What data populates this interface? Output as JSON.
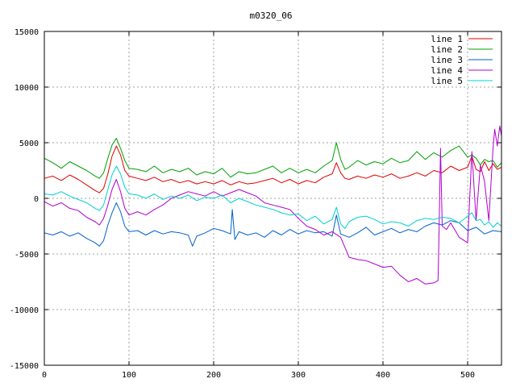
{
  "chart_data": {
    "type": "line",
    "title": "m0320_06",
    "xlabel": "",
    "ylabel": "",
    "xlim": [
      0,
      540
    ],
    "ylim": [
      -15000,
      15000
    ],
    "xticks": [
      0,
      100,
      200,
      300,
      400,
      500
    ],
    "yticks": [
      -15000,
      -10000,
      -5000,
      0,
      5000,
      10000,
      15000
    ],
    "grid": true,
    "legend_position": "top-right",
    "series": [
      {
        "name": "line 1",
        "color": "#e00000",
        "x": [
          0,
          10,
          20,
          30,
          40,
          50,
          60,
          65,
          70,
          75,
          80,
          85,
          90,
          95,
          100,
          110,
          120,
          130,
          140,
          150,
          160,
          170,
          180,
          190,
          200,
          210,
          220,
          230,
          240,
          250,
          260,
          270,
          280,
          290,
          300,
          310,
          320,
          330,
          340,
          345,
          350,
          355,
          360,
          370,
          380,
          390,
          400,
          410,
          420,
          430,
          440,
          450,
          460,
          470,
          480,
          490,
          500,
          505,
          510,
          515,
          520,
          525,
          530,
          535,
          540
        ],
        "y": [
          1800,
          2000,
          1600,
          2100,
          1700,
          1200,
          700,
          500,
          900,
          2200,
          3800,
          4700,
          3900,
          2500,
          2000,
          1800,
          1600,
          1900,
          1500,
          1700,
          1400,
          1600,
          1300,
          1500,
          1300,
          1600,
          1200,
          1500,
          1300,
          1400,
          1600,
          1800,
          1400,
          1700,
          1300,
          1600,
          1400,
          1900,
          2200,
          3200,
          2300,
          1800,
          1700,
          2000,
          1800,
          2100,
          1900,
          2200,
          1800,
          2000,
          2300,
          2000,
          2500,
          2300,
          2900,
          2500,
          2800,
          3800,
          2600,
          2400,
          3300,
          2500,
          3100,
          2600,
          2800
        ]
      },
      {
        "name": "line 2",
        "color": "#00a000",
        "x": [
          0,
          10,
          20,
          30,
          40,
          50,
          60,
          65,
          70,
          75,
          80,
          85,
          90,
          95,
          100,
          110,
          120,
          130,
          140,
          150,
          160,
          170,
          180,
          190,
          200,
          210,
          220,
          230,
          240,
          250,
          260,
          270,
          280,
          290,
          300,
          310,
          320,
          330,
          340,
          345,
          350,
          355,
          360,
          370,
          380,
          390,
          400,
          410,
          420,
          430,
          440,
          450,
          460,
          470,
          480,
          490,
          500,
          505,
          510,
          515,
          520,
          525,
          530,
          535,
          540
        ],
        "y": [
          3600,
          3200,
          2700,
          3300,
          2900,
          2500,
          2000,
          1800,
          2300,
          3600,
          4800,
          5400,
          4500,
          3400,
          2700,
          2600,
          2400,
          2900,
          2300,
          2600,
          2400,
          2700,
          2100,
          2400,
          2200,
          2700,
          1900,
          2400,
          2200,
          2300,
          2600,
          2900,
          2300,
          2700,
          2300,
          2600,
          2300,
          2900,
          3400,
          5000,
          3500,
          2600,
          2800,
          3400,
          3000,
          3300,
          3100,
          3600,
          3200,
          3400,
          4200,
          3500,
          4100,
          3700,
          4300,
          4700,
          3700,
          3900,
          3600,
          3000,
          3500,
          3300,
          3400,
          2800,
          3200
        ]
      },
      {
        "name": "line 3",
        "color": "#0060d0",
        "x": [
          0,
          10,
          20,
          30,
          40,
          50,
          60,
          65,
          70,
          75,
          80,
          85,
          90,
          95,
          100,
          110,
          120,
          130,
          140,
          150,
          160,
          170,
          175,
          180,
          190,
          200,
          210,
          220,
          222,
          225,
          230,
          240,
          250,
          260,
          270,
          280,
          290,
          300,
          310,
          320,
          330,
          340,
          345,
          350,
          360,
          370,
          380,
          390,
          400,
          410,
          420,
          430,
          440,
          450,
          460,
          470,
          480,
          490,
          500,
          510,
          520,
          530,
          540
        ],
        "y": [
          -3100,
          -3300,
          -3000,
          -3400,
          -3100,
          -3600,
          -4000,
          -4300,
          -3800,
          -2400,
          -1300,
          -400,
          -1200,
          -2500,
          -3000,
          -2900,
          -3300,
          -2900,
          -3200,
          -3000,
          -3100,
          -3300,
          -4300,
          -3400,
          -3100,
          -2700,
          -2900,
          -3200,
          -1000,
          -3700,
          -3000,
          -3300,
          -3100,
          -3500,
          -2900,
          -3300,
          -2800,
          -3200,
          -2900,
          -3100,
          -3000,
          -3400,
          -1500,
          -3200,
          -3500,
          -3100,
          -2600,
          -3300,
          -3000,
          -2700,
          -3100,
          -2800,
          -3000,
          -2500,
          -2200,
          -2400,
          -2000,
          -2200,
          -2900,
          -2600,
          -3200,
          -2900,
          -3000
        ]
      },
      {
        "name": "line 4",
        "color": "#b000d0",
        "x": [
          0,
          10,
          20,
          30,
          40,
          50,
          60,
          65,
          70,
          75,
          80,
          85,
          90,
          95,
          100,
          110,
          120,
          130,
          140,
          150,
          160,
          170,
          180,
          190,
          200,
          210,
          220,
          230,
          240,
          250,
          260,
          270,
          280,
          290,
          300,
          310,
          320,
          330,
          340,
          350,
          360,
          370,
          380,
          390,
          400,
          410,
          420,
          430,
          440,
          450,
          460,
          465,
          466,
          468,
          470,
          475,
          480,
          490,
          500,
          505,
          510,
          515,
          520,
          525,
          530,
          532,
          535,
          538,
          540
        ],
        "y": [
          -300,
          -700,
          -400,
          -900,
          -1100,
          -1700,
          -2100,
          -2400,
          -1800,
          -600,
          800,
          1700,
          600,
          -900,
          -1500,
          -1200,
          -1500,
          -1000,
          -600,
          0,
          300,
          600,
          400,
          200,
          600,
          200,
          500,
          800,
          500,
          200,
          -400,
          -600,
          -800,
          -1000,
          -1800,
          -2500,
          -2800,
          -3300,
          -3000,
          -3500,
          -5300,
          -5500,
          -5600,
          -5900,
          -6200,
          -6100,
          -6900,
          -7500,
          -7200,
          -7700,
          -7600,
          -7400,
          -4000,
          4500,
          -2500,
          -2800,
          -2200,
          -3500,
          -4000,
          4200,
          -2000,
          3000,
          1500,
          -2000,
          4500,
          6200,
          4700,
          6500,
          5600
        ]
      },
      {
        "name": "line 5",
        "color": "#00d0d0",
        "x": [
          0,
          10,
          20,
          30,
          40,
          50,
          60,
          65,
          70,
          75,
          80,
          85,
          90,
          95,
          100,
          110,
          120,
          130,
          140,
          150,
          160,
          170,
          180,
          190,
          200,
          210,
          220,
          230,
          240,
          250,
          260,
          270,
          280,
          290,
          300,
          310,
          320,
          330,
          340,
          345,
          350,
          355,
          360,
          370,
          380,
          390,
          400,
          410,
          420,
          430,
          440,
          450,
          460,
          470,
          480,
          490,
          500,
          505,
          510,
          515,
          520,
          525,
          530,
          535,
          540
        ],
        "y": [
          400,
          300,
          600,
          200,
          -100,
          -400,
          -900,
          -1100,
          -600,
          800,
          2100,
          2900,
          2200,
          1000,
          400,
          300,
          0,
          400,
          -100,
          200,
          0,
          300,
          -200,
          100,
          0,
          300,
          -400,
          0,
          -300,
          -600,
          -800,
          -1000,
          -1300,
          -1500,
          -1400,
          -2000,
          -1600,
          -2300,
          -1900,
          -800,
          -2300,
          -2700,
          -2100,
          -1700,
          -1600,
          -1900,
          -2300,
          -2100,
          -2200,
          -2500,
          -2000,
          -1800,
          -1900,
          -1700,
          -1800,
          -2200,
          -1600,
          -1300,
          -2000,
          -1900,
          -2400,
          -2100,
          -2600,
          -2200,
          -2500
        ]
      }
    ]
  }
}
